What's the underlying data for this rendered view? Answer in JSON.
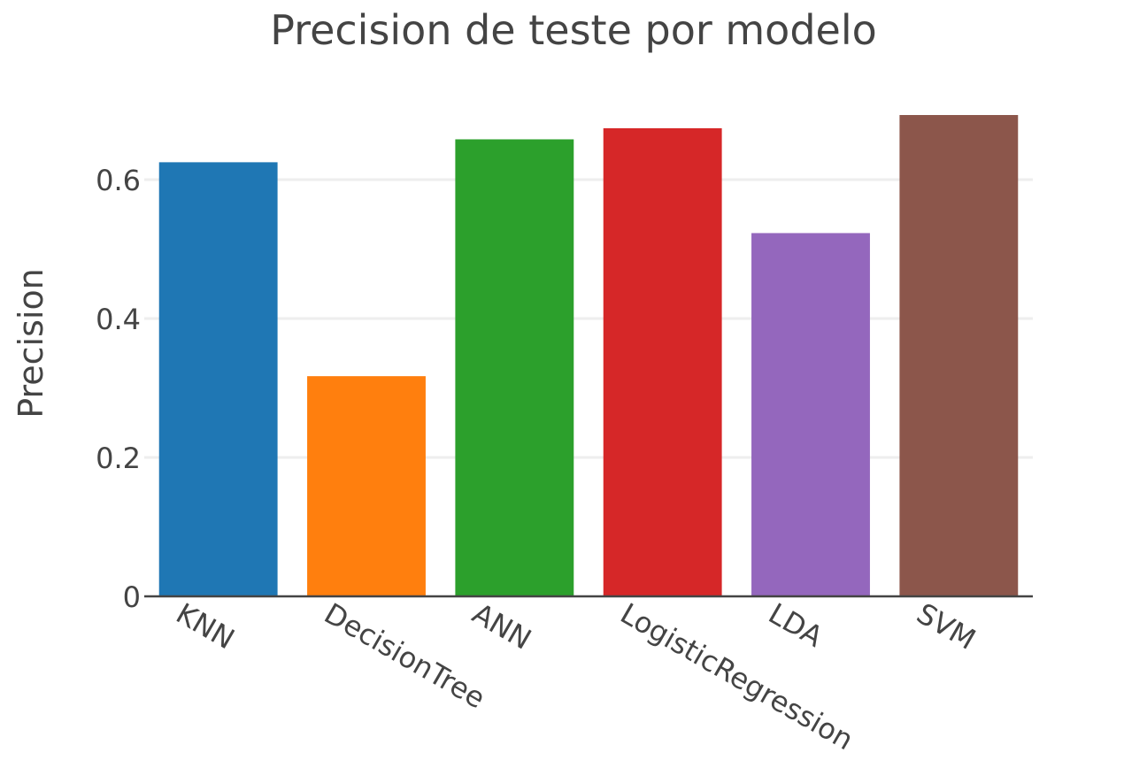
{
  "chart_data": {
    "type": "bar",
    "title": "Precision de teste por modelo",
    "xlabel": "",
    "ylabel": "Precision",
    "categories": [
      "KNN",
      "DecisionTree",
      "ANN",
      "LogisticRegression",
      "LDA",
      "SVM"
    ],
    "values": [
      0.625,
      0.317,
      0.658,
      0.674,
      0.523,
      0.693
    ],
    "colors": [
      "#1f77b4",
      "#ff7f0e",
      "#2ca02c",
      "#d62728",
      "#9467bd",
      "#8c564b"
    ],
    "ylim": [
      0,
      0.7
    ],
    "yticks": [
      0,
      0.2,
      0.4,
      0.6
    ],
    "ytick_labels": [
      "0",
      "0.2",
      "0.4",
      "0.6"
    ],
    "grid": true,
    "legend": "none"
  }
}
